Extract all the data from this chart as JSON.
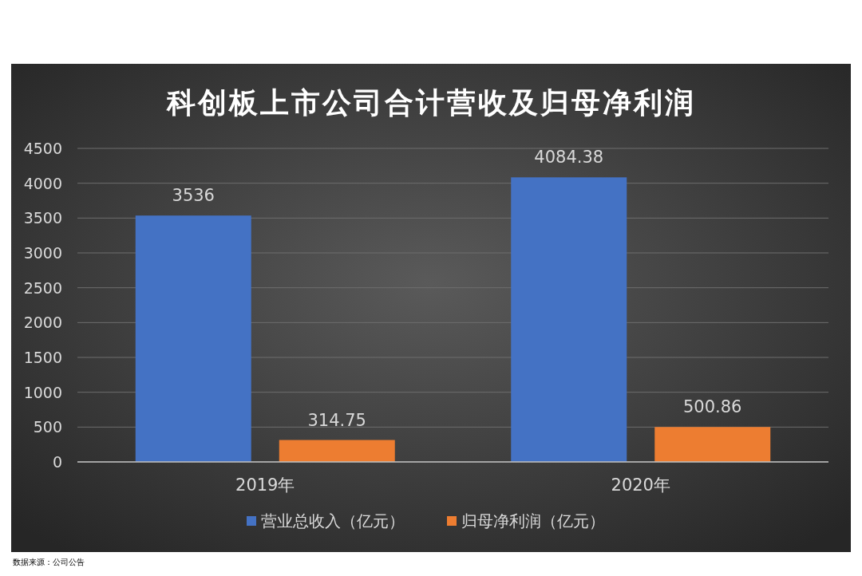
{
  "chart_data": {
    "type": "bar",
    "title": "科创板上市公司合计营收及归母净利润",
    "categories": [
      "2019年",
      "2020年"
    ],
    "series": [
      {
        "name": "营业总收入（亿元）",
        "color": "#4472c4",
        "values": [
          3536,
          4084.38
        ]
      },
      {
        "name": "归母净利润（亿元）",
        "color": "#ed7d31",
        "values": [
          314.75,
          500.86
        ]
      }
    ],
    "ylim": [
      0,
      4500
    ],
    "yticks": [
      0,
      500,
      1000,
      1500,
      2000,
      2500,
      3000,
      3500,
      4000,
      4500
    ],
    "grid": "y",
    "legend": "bottom",
    "data_labels": true,
    "annotations": [
      "数据来源：公司公告"
    ]
  }
}
